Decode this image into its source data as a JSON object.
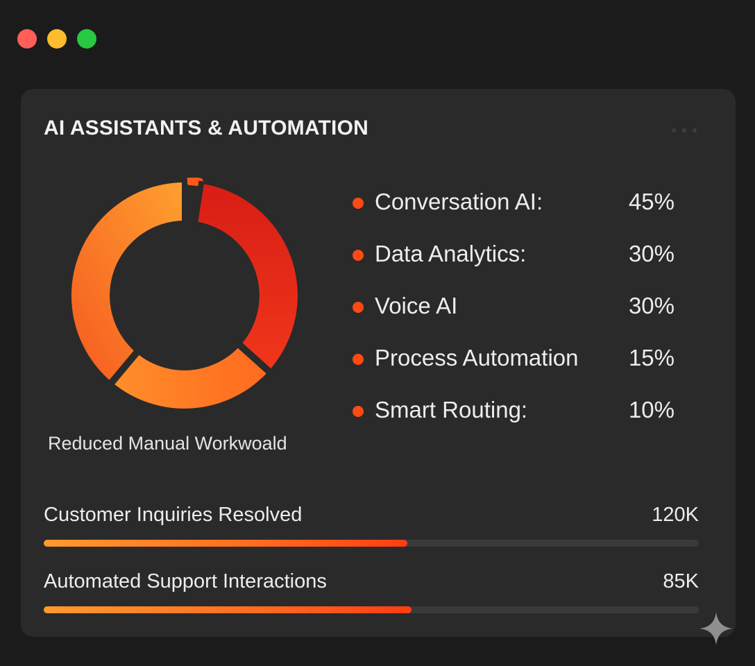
{
  "window": {
    "controls": [
      "close",
      "minimize",
      "maximize"
    ]
  },
  "card": {
    "title": "AI ASSISTANTS & AUTOMATION",
    "menu_icon": "more-horizontal-icon"
  },
  "donut": {
    "caption": "Reduced Manual Workwoald",
    "segment_colors": [
      "#ff9a2e",
      "#e2201a",
      "#ff7a24"
    ]
  },
  "legend": {
    "bullet_color": "#ff4a14",
    "items": [
      {
        "label": "Conversation AI:",
        "value": "45%"
      },
      {
        "label": "Data Analytics:",
        "value": "30%"
      },
      {
        "label": "Voice AI",
        "value": "30%"
      },
      {
        "label": "Process Automation",
        "value": "15%"
      },
      {
        "label": "Smart Routing:",
        "value": "10%"
      }
    ]
  },
  "metrics": [
    {
      "label": "Customer Inquiries Resolved",
      "value": "120K",
      "progress": 0.555
    },
    {
      "label": "Automated Support Interactions",
      "value": "85K",
      "progress": 0.561
    }
  ],
  "colors": {
    "accent": "#ff4a14",
    "background": "#1b1b1b",
    "card": "#2a2a2a"
  },
  "corner_icon": "sparkle-icon"
}
